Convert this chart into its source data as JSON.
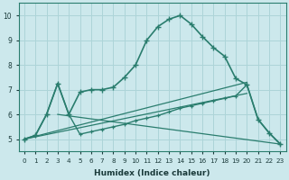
{
  "xlabel": "Humidex (Indice chaleur)",
  "bg_color": "#cce8ec",
  "grid_color": "#add4d8",
  "line_color": "#2a7d6e",
  "x_range": [
    -0.5,
    23.5
  ],
  "y_range": [
    4.5,
    10.5
  ],
  "yticks": [
    5,
    6,
    7,
    8,
    9,
    10
  ],
  "xticks": [
    0,
    1,
    2,
    3,
    4,
    5,
    6,
    7,
    8,
    9,
    10,
    11,
    12,
    13,
    14,
    15,
    16,
    17,
    18,
    19,
    20,
    21,
    22,
    23
  ],
  "curve1_x": [
    0,
    1,
    2,
    3,
    4,
    5,
    6,
    7,
    8,
    9,
    10,
    11,
    12,
    13,
    14,
    15,
    16,
    17,
    18,
    19,
    20,
    21,
    22,
    23
  ],
  "curve1_y": [
    5.0,
    5.15,
    6.0,
    7.25,
    6.0,
    6.9,
    7.0,
    7.0,
    7.1,
    7.5,
    8.0,
    9.0,
    9.55,
    9.85,
    10.0,
    9.65,
    9.15,
    8.7,
    8.35,
    7.45,
    7.2,
    5.8,
    5.25,
    4.8
  ],
  "curve2_x": [
    0,
    1,
    2,
    3,
    4,
    5,
    6,
    7,
    8,
    9,
    10,
    11,
    12,
    13,
    14,
    15,
    16,
    17,
    18,
    19,
    20,
    21,
    22,
    23
  ],
  "curve2_y": [
    5.0,
    5.15,
    6.0,
    7.25,
    6.0,
    5.2,
    5.3,
    5.4,
    5.5,
    5.6,
    5.75,
    5.85,
    5.95,
    6.1,
    6.25,
    6.35,
    6.45,
    6.55,
    6.65,
    6.75,
    7.2,
    5.8,
    5.25,
    4.8
  ],
  "line1_x": [
    0,
    20
  ],
  "line1_y": [
    5.0,
    7.3
  ],
  "line2_x": [
    0,
    20
  ],
  "line2_y": [
    5.0,
    6.85
  ],
  "line3_x": [
    3,
    23
  ],
  "line3_y": [
    6.0,
    4.8
  ]
}
